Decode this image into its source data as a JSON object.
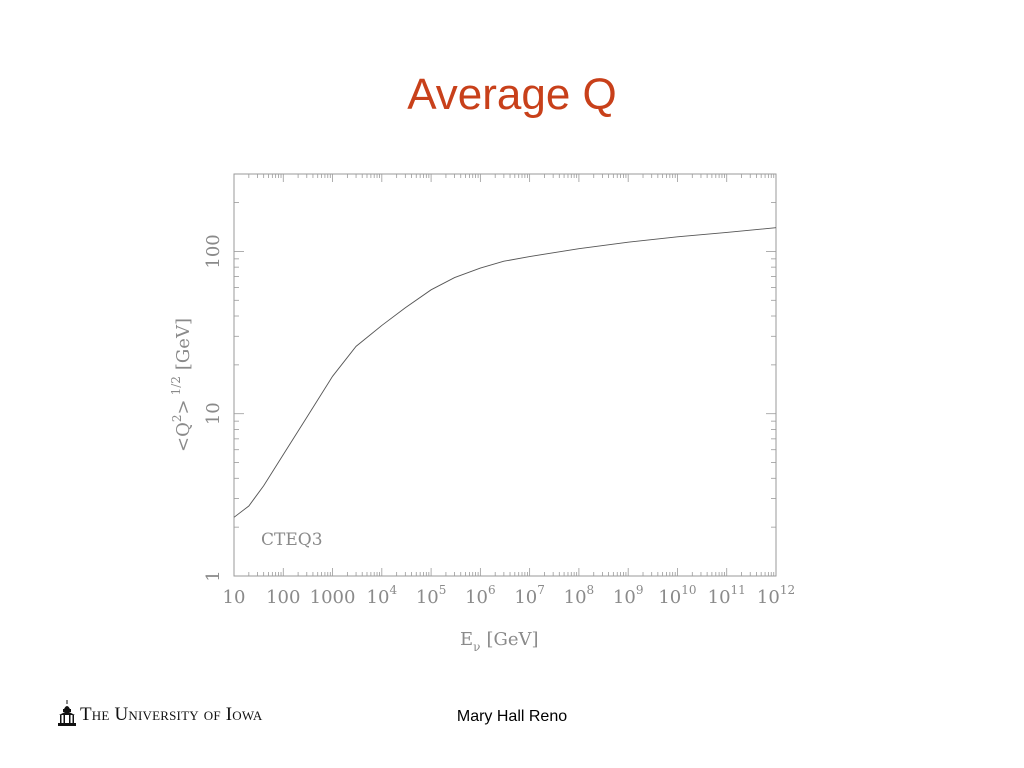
{
  "slide": {
    "title": "Average Q",
    "author": "Mary Hall Reno",
    "logo_text": "The University of Iowa"
  },
  "chart_data": {
    "type": "line",
    "title": "",
    "xlabel": "E",
    "xlabel_sub": "ν",
    "xlabel_unit": "[GeV]",
    "ylabel": "<Q",
    "ylabel_sup": "2",
    "ylabel_mid": ">",
    "ylabel_exp": "1/2",
    "ylabel_unit": "[GeV]",
    "xscale": "log",
    "yscale": "log",
    "xlim": [
      10,
      1000000000000.0
    ],
    "ylim": [
      1,
      300
    ],
    "x_ticks": [
      {
        "base": "10",
        "exp": ""
      },
      {
        "base": "100",
        "exp": ""
      },
      {
        "base": "1000",
        "exp": ""
      },
      {
        "base": "10",
        "exp": "4"
      },
      {
        "base": "10",
        "exp": "5"
      },
      {
        "base": "10",
        "exp": "6"
      },
      {
        "base": "10",
        "exp": "7"
      },
      {
        "base": "10",
        "exp": "8"
      },
      {
        "base": "10",
        "exp": "9"
      },
      {
        "base": "10",
        "exp": "10"
      },
      {
        "base": "10",
        "exp": "11"
      },
      {
        "base": "10",
        "exp": "12"
      }
    ],
    "y_ticks": [
      "1",
      "10",
      "100"
    ],
    "annotation": "CTEQ3",
    "grid": false,
    "series": [
      {
        "x": [
          10,
          20,
          40,
          100,
          300,
          1000,
          3000,
          10000,
          30000,
          100000,
          300000,
          1000000,
          3000000,
          10000000,
          100000000,
          1000000000,
          10000000000,
          100000000000,
          1000000000000
        ],
        "y": [
          2.3,
          2.7,
          3.6,
          5.6,
          9.5,
          17,
          26,
          35,
          45,
          58,
          69,
          79,
          87,
          93,
          104,
          114,
          123,
          131,
          140
        ]
      }
    ]
  }
}
